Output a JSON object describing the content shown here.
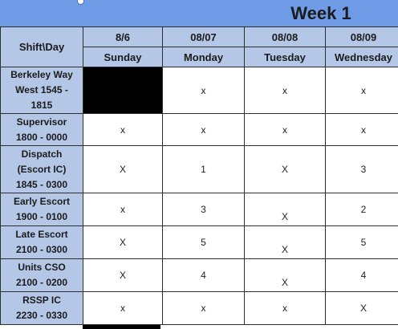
{
  "week_title": "Week 1",
  "corner_label": "Shift\\Day",
  "dates": [
    "8/6",
    "08/07",
    "08/08",
    "08/09"
  ],
  "days": [
    "Sunday",
    "Monday",
    "Tuesday",
    "Wednesday"
  ],
  "rows": [
    {
      "label_lines": [
        "Berkeley Way",
        "West 1545 -",
        "1815"
      ],
      "cells": [
        "",
        "x",
        "x",
        "x"
      ]
    },
    {
      "label_lines": [
        "Supervisor",
        "1800 - 0000"
      ],
      "cells": [
        "x",
        "x",
        "x",
        "x"
      ]
    },
    {
      "label_lines": [
        "Dispatch",
        "(Escort IC)",
        "1845 - 0300"
      ],
      "cells": [
        "X",
        "1",
        "X",
        "3"
      ]
    },
    {
      "label_lines": [
        "Early Escort",
        "1900 - 0100"
      ],
      "cells": [
        "x",
        "3",
        "X",
        "2"
      ]
    },
    {
      "label_lines": [
        "Late Escort",
        "2100 - 0300"
      ],
      "cells": [
        "X",
        "5",
        "X",
        "5"
      ]
    },
    {
      "label_lines": [
        "Units CSO",
        "2100 - 0200"
      ],
      "cells": [
        "X",
        "4",
        "X",
        "4"
      ]
    },
    {
      "label_lines": [
        "RSSP IC",
        "2230 - 0330"
      ],
      "cells": [
        "x",
        "x",
        "x",
        "X"
      ]
    }
  ],
  "colors": {
    "title_band": "#6f9be6",
    "header_fill": "#b4c7e7",
    "blocked_fill": "#000000"
  }
}
